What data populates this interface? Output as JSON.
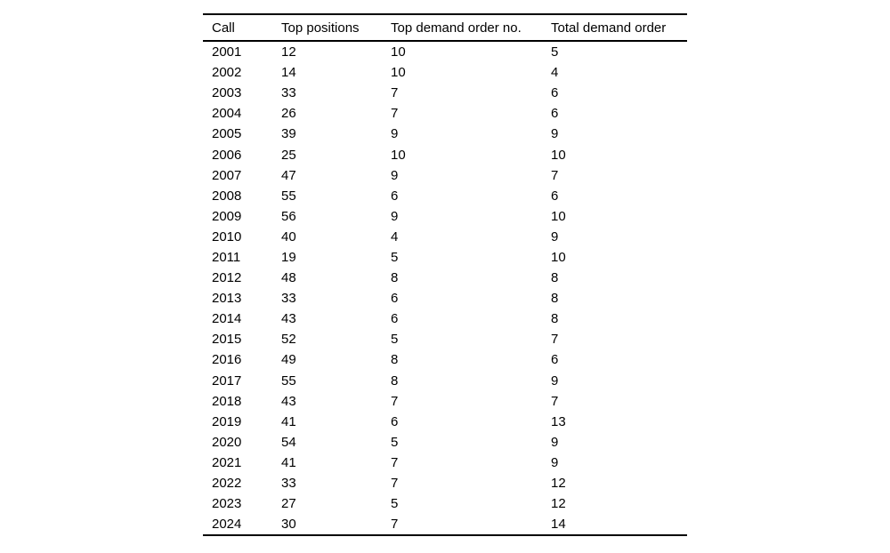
{
  "chart_data": {
    "type": "table",
    "columns": [
      "Call",
      "Top positions",
      "Top demand order no.",
      "Total demand order"
    ],
    "rows": [
      [
        "2001",
        "12",
        "10",
        "5"
      ],
      [
        "2002",
        "14",
        "10",
        "4"
      ],
      [
        "2003",
        "33",
        "7",
        "6"
      ],
      [
        "2004",
        "26",
        "7",
        "6"
      ],
      [
        "2005",
        "39",
        "9",
        "9"
      ],
      [
        "2006",
        "25",
        "10",
        "10"
      ],
      [
        "2007",
        "47",
        "9",
        "7"
      ],
      [
        "2008",
        "55",
        "6",
        "6"
      ],
      [
        "2009",
        "56",
        "9",
        "10"
      ],
      [
        "2010",
        "40",
        "4",
        "9"
      ],
      [
        "2011",
        "19",
        "5",
        "10"
      ],
      [
        "2012",
        "48",
        "8",
        "8"
      ],
      [
        "2013",
        "33",
        "6",
        "8"
      ],
      [
        "2014",
        "43",
        "6",
        "8"
      ],
      [
        "2015",
        "52",
        "5",
        "7"
      ],
      [
        "2016",
        "49",
        "8",
        "6"
      ],
      [
        "2017",
        "55",
        "8",
        "9"
      ],
      [
        "2018",
        "43",
        "7",
        "7"
      ],
      [
        "2019",
        "41",
        "6",
        "13"
      ],
      [
        "2020",
        "54",
        "5",
        "9"
      ],
      [
        "2021",
        "41",
        "7",
        "9"
      ],
      [
        "2022",
        "33",
        "7",
        "12"
      ],
      [
        "2023",
        "27",
        "5",
        "12"
      ],
      [
        "2024",
        "30",
        "7",
        "14"
      ]
    ],
    "layout": {
      "rules": "horizontal-only",
      "top_rule": true,
      "header_rule": true,
      "bottom_rule": true,
      "column_alignment": [
        "left",
        "left",
        "left",
        "left"
      ]
    }
  },
  "colors": {
    "background": "#ffffff",
    "text": "#000000",
    "rule": "#000000"
  }
}
